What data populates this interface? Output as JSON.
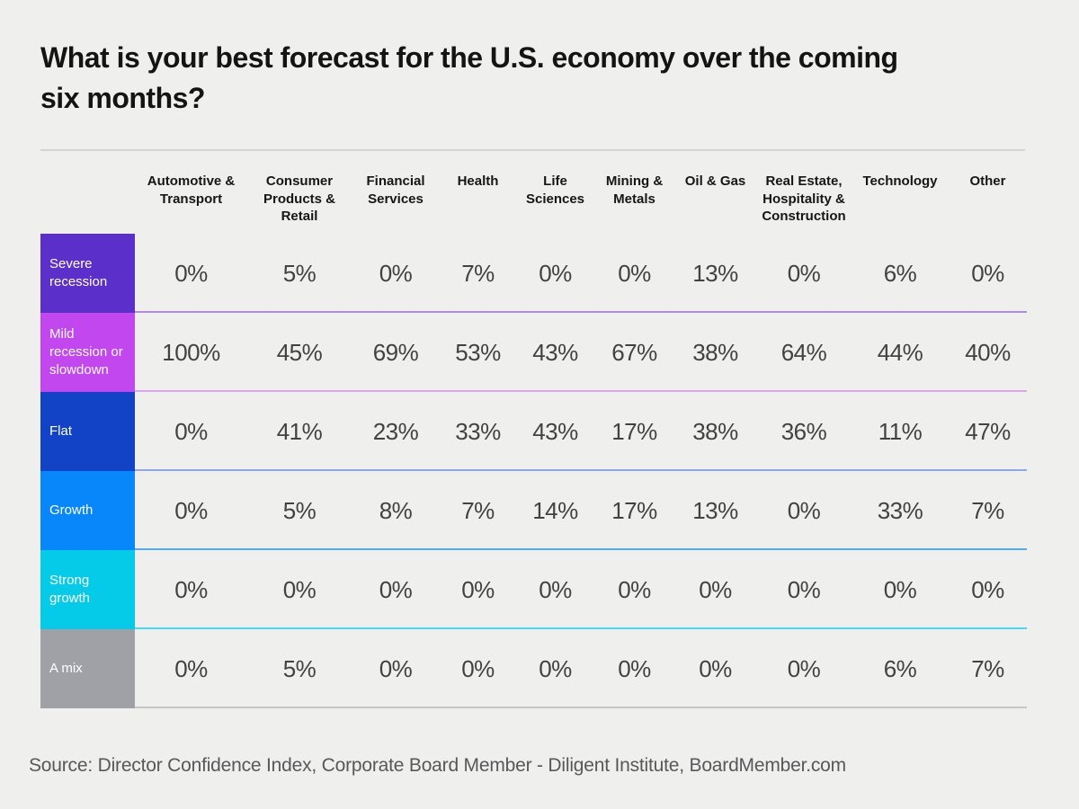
{
  "page": {
    "title": "What is your best forecast for the U.S. economy over the coming six months?",
    "source": "Source: Director Confidence Index, Corporate Board Member - Diligent Institute, BoardMember.com",
    "background": "#efefee",
    "divider_color": "#d4d4d2"
  },
  "chart_data": {
    "type": "table",
    "title": "What is your best forecast for the U.S. economy over the coming six months?",
    "columns": [
      "Automotive & Transport",
      "Consumer Products & Retail",
      "Financial Services",
      "Health",
      "Life Sciences",
      "Mining & Metals",
      "Oil & Gas",
      "Real Estate, Hospitality & Construction",
      "Technology",
      "Other"
    ],
    "rows": [
      {
        "label": "Severe recession",
        "color": "#5b2fc9",
        "line_color": "#b18ae0",
        "values": [
          "0%",
          "5%",
          "0%",
          "7%",
          "0%",
          "0%",
          "13%",
          "0%",
          "6%",
          "0%"
        ]
      },
      {
        "label": "Mild recession or slowdown",
        "color": "#c247ee",
        "line_color": "#dda6ec",
        "values": [
          "100%",
          "45%",
          "69%",
          "53%",
          "43%",
          "67%",
          "38%",
          "64%",
          "44%",
          "40%"
        ]
      },
      {
        "label": "Flat",
        "color": "#1243c6",
        "line_color": "#8fa7e6",
        "values": [
          "0%",
          "41%",
          "23%",
          "33%",
          "43%",
          "17%",
          "38%",
          "36%",
          "11%",
          "47%"
        ]
      },
      {
        "label": "Growth",
        "color": "#0887fa",
        "line_color": "#55aaf5",
        "values": [
          "0%",
          "5%",
          "8%",
          "7%",
          "14%",
          "17%",
          "13%",
          "0%",
          "33%",
          "7%"
        ]
      },
      {
        "label": "Strong growth",
        "color": "#05cbe9",
        "line_color": "#48d8ef",
        "values": [
          "0%",
          "0%",
          "0%",
          "0%",
          "0%",
          "0%",
          "0%",
          "0%",
          "0%",
          "0%"
        ]
      },
      {
        "label": "A mix",
        "color": "#a0a1a7",
        "line_color": "#c6c6c8",
        "values": [
          "0%",
          "5%",
          "0%",
          "0%",
          "0%",
          "0%",
          "0%",
          "0%",
          "6%",
          "7%"
        ]
      }
    ]
  }
}
